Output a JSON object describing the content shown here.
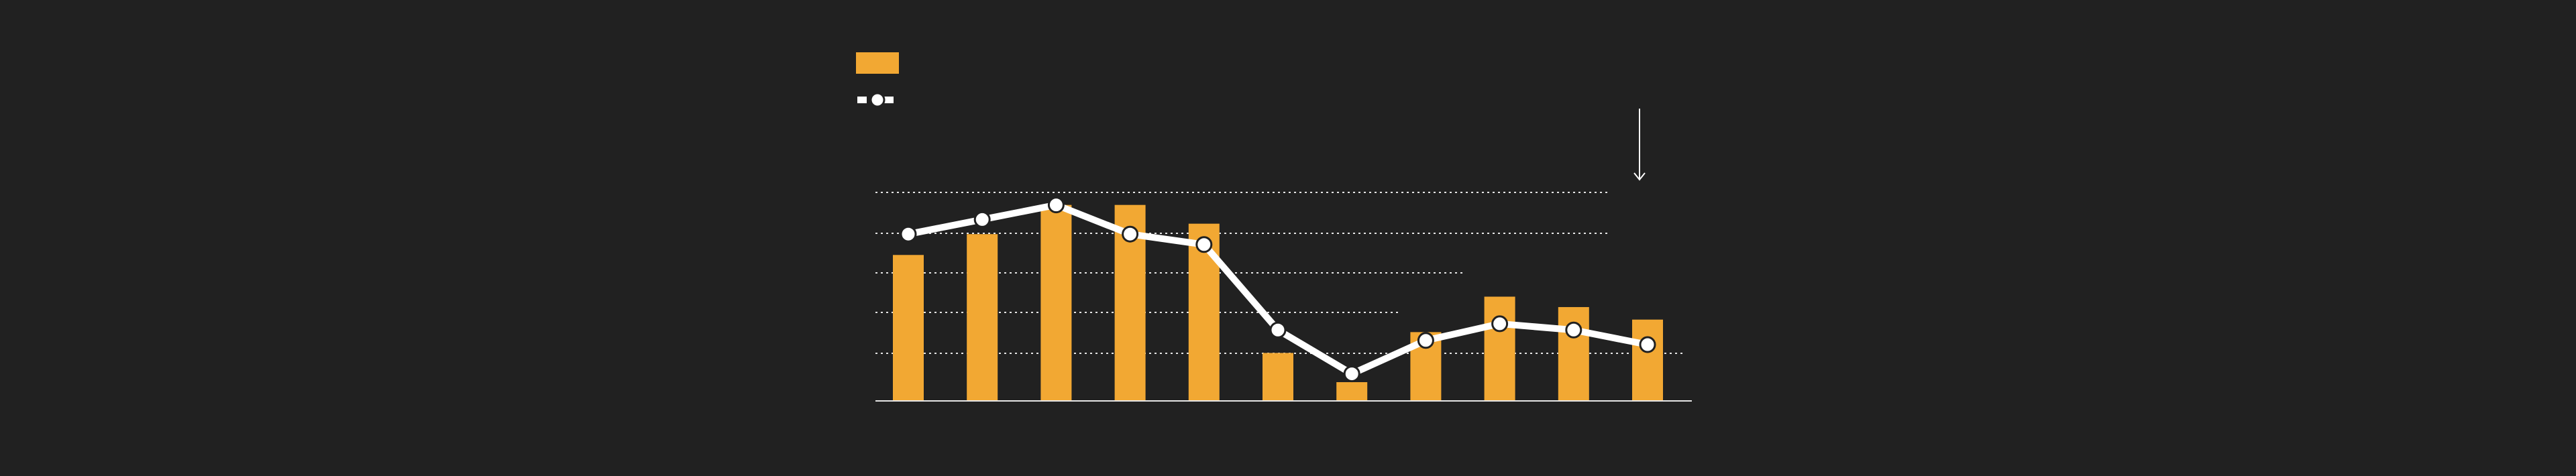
{
  "chart_data": {
    "type": "bar",
    "categories": [
      null,
      null,
      null,
      null,
      null,
      null,
      null,
      null,
      null,
      null,
      null
    ],
    "series": [
      {
        "type": "bar",
        "color": "#f2a833",
        "values": [
          70,
          80,
          94,
          94,
          85,
          23,
          9,
          33,
          50,
          45,
          39
        ]
      },
      {
        "type": "line",
        "color": "#ffffff",
        "values": [
          80,
          87,
          94,
          80,
          75,
          34,
          13,
          29,
          37,
          34,
          27
        ]
      }
    ],
    "ylim": [
      0,
      100
    ]
  }
}
